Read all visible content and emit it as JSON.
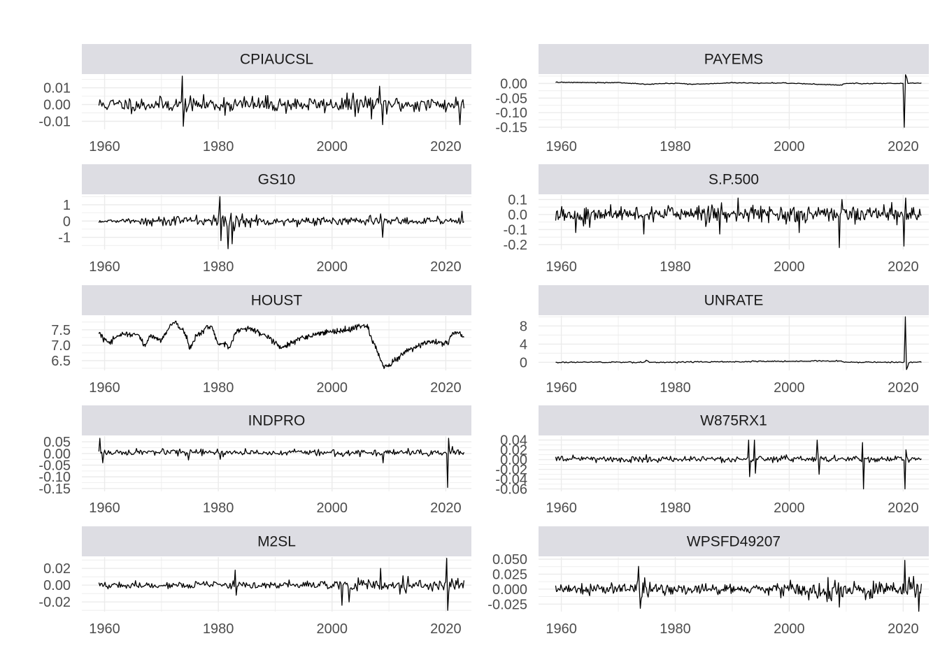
{
  "chart_data": {
    "type": "line",
    "layout": "facet-grid-5x2",
    "theme": {
      "strip_fill": "#dddde3",
      "grid_color": "#ebebeb",
      "line_color": "#000000",
      "background": "#ffffff"
    },
    "x_ticks": [
      1960,
      1980,
      2000,
      2020
    ],
    "xlim": [
      1956,
      2024.5
    ],
    "panels": [
      {
        "title": "CPIAUCSL",
        "ylim": [
          -0.0148,
          0.0182
        ],
        "y_ticks": [
          {
            "v": 0.01,
            "label": "0.01"
          },
          {
            "v": 0.0,
            "label": "0.00"
          },
          {
            "v": -0.01,
            "label": "-0.01"
          }
        ],
        "series": {
          "start": 1959,
          "end": 2023.2,
          "points": 360,
          "base": 0.0,
          "noise": 0.0022,
          "seed": 11,
          "volatility": [
            [
              1959,
              1.0
            ],
            [
              1978,
              1.0
            ],
            [
              1980,
              1.2
            ],
            [
              2000,
              1.0
            ],
            [
              2005,
              1.5
            ],
            [
              2012,
              1.1
            ],
            [
              2023.5,
              1.1
            ]
          ],
          "anchors": [
            [
              1960,
              0.0
            ],
            [
              2023.5,
              0.0
            ]
          ],
          "spikes": [
            [
              1973.6,
              0.017
            ],
            [
              1973.8,
              -0.013
            ],
            [
              2008.9,
              -0.012
            ],
            [
              2008.4,
              0.011
            ],
            [
              2022.5,
              -0.012
            ]
          ]
        }
      },
      {
        "title": "PAYEMS",
        "ylim": [
          -0.157,
          0.032
        ],
        "y_ticks": [
          {
            "v": 0.0,
            "label": "0.00"
          },
          {
            "v": -0.05,
            "label": "-0.05"
          },
          {
            "v": -0.1,
            "label": "-0.10"
          },
          {
            "v": -0.15,
            "label": "-0.15"
          }
        ],
        "series": {
          "start": 1959,
          "end": 2023.2,
          "points": 300,
          "base": 0.0,
          "noise": 0.0008,
          "seed": 12,
          "volatility": [
            [
              1959,
              1.0
            ],
            [
              2023.5,
              1.0
            ]
          ],
          "anchors": [
            [
              1959,
              0.004
            ],
            [
              1970,
              0.003
            ],
            [
              1975,
              -0.003
            ],
            [
              1980,
              0.001
            ],
            [
              1983,
              -0.003
            ],
            [
              1990,
              0.002
            ],
            [
              2000,
              0.001
            ],
            [
              2009,
              -0.006
            ],
            [
              2010,
              0.0
            ],
            [
              2020,
              0.0
            ],
            [
              2023.5,
              0.002
            ]
          ],
          "spikes": [
            [
              2020.3,
              -0.15
            ],
            [
              2020.5,
              0.03
            ],
            [
              2020.7,
              0.02
            ]
          ]
        }
      },
      {
        "title": "GS10",
        "ylim": [
          -1.75,
          1.6
        ],
        "y_ticks": [
          {
            "v": 1,
            "label": "1"
          },
          {
            "v": 0,
            "label": "0"
          },
          {
            "v": -1,
            "label": "-1"
          }
        ],
        "series": {
          "start": 1959,
          "end": 2023.2,
          "points": 360,
          "base": 0.0,
          "noise": 0.12,
          "seed": 13,
          "volatility": [
            [
              1959,
              0.5
            ],
            [
              1965,
              0.6
            ],
            [
              1970,
              1.4
            ],
            [
              1979,
              1.3
            ],
            [
              1980,
              3.2
            ],
            [
              1986,
              1.8
            ],
            [
              1990,
              1.2
            ],
            [
              2010,
              1.1
            ],
            [
              2020,
              0.9
            ],
            [
              2023.5,
              2.0
            ]
          ],
          "anchors": [
            [
              1960,
              0.0
            ],
            [
              2023.5,
              0.0
            ]
          ],
          "spikes": [
            [
              1980.2,
              1.5
            ],
            [
              1980.5,
              -1.2
            ],
            [
              1981.8,
              -1.7
            ],
            [
              1982.5,
              -1.4
            ],
            [
              2008.9,
              -1.0
            ],
            [
              2022.8,
              0.6
            ]
          ]
        }
      },
      {
        "title": "S.P.500",
        "ylim": [
          -0.233,
          0.13
        ],
        "y_ticks": [
          {
            "v": 0.1,
            "label": "0.1"
          },
          {
            "v": 0.0,
            "label": "0.0"
          },
          {
            "v": -0.1,
            "label": "-0.1"
          },
          {
            "v": -0.2,
            "label": "-0.2"
          }
        ],
        "series": {
          "start": 1959,
          "end": 2023.2,
          "points": 420,
          "base": 0.005,
          "noise": 0.028,
          "seed": 14,
          "volatility": [
            [
              1959,
              1.0
            ],
            [
              2023.5,
              1.0
            ]
          ],
          "anchors": [
            [
              1960,
              0.005
            ],
            [
              2023.5,
              0.005
            ]
          ],
          "spikes": [
            [
              1962.5,
              -0.12
            ],
            [
              1974.5,
              -0.13
            ],
            [
              1987.8,
              -0.13
            ],
            [
              1991.0,
              0.11
            ],
            [
              2001.7,
              -0.12
            ],
            [
              2008.8,
              -0.22
            ],
            [
              2009.3,
              0.1
            ],
            [
              2020.2,
              -0.21
            ],
            [
              2020.4,
              0.11
            ]
          ]
        }
      },
      {
        "title": "HOUST",
        "ylim": [
          6.18,
          7.95
        ],
        "y_ticks": [
          {
            "v": 7.5,
            "label": "7.5"
          },
          {
            "v": 7.0,
            "label": "7.0"
          },
          {
            "v": 6.5,
            "label": "6.5"
          }
        ],
        "series": {
          "start": 1959,
          "end": 2023.2,
          "points": 640,
          "base": 0.0,
          "noise": 0.045,
          "seed": 15,
          "volatility": [
            [
              1959,
              1.0
            ],
            [
              2023.5,
              1.0
            ]
          ],
          "anchors": [
            [
              1959,
              7.42
            ],
            [
              1960,
              7.2
            ],
            [
              1961,
              7.1
            ],
            [
              1963,
              7.38
            ],
            [
              1966,
              7.35
            ],
            [
              1967,
              6.95
            ],
            [
              1968,
              7.3
            ],
            [
              1970,
              7.15
            ],
            [
              1971.5,
              7.65
            ],
            [
              1972.5,
              7.75
            ],
            [
              1974,
              7.45
            ],
            [
              1975,
              6.95
            ],
            [
              1976,
              7.25
            ],
            [
              1978,
              7.6
            ],
            [
              1979,
              7.55
            ],
            [
              1980,
              7.05
            ],
            [
              1981.5,
              7.0
            ],
            [
              1982,
              6.95
            ],
            [
              1983,
              7.4
            ],
            [
              1984,
              7.55
            ],
            [
              1986,
              7.5
            ],
            [
              1988,
              7.35
            ],
            [
              1990,
              7.1
            ],
            [
              1991,
              6.9
            ],
            [
              1993,
              7.1
            ],
            [
              1996,
              7.3
            ],
            [
              1998,
              7.4
            ],
            [
              2003,
              7.5
            ],
            [
              2005,
              7.65
            ],
            [
              2006,
              7.62
            ],
            [
              2007,
              7.2
            ],
            [
              2008,
              6.8
            ],
            [
              2009,
              6.3
            ],
            [
              2010,
              6.35
            ],
            [
              2011,
              6.5
            ],
            [
              2013,
              6.8
            ],
            [
              2016,
              7.05
            ],
            [
              2019,
              7.1
            ],
            [
              2020.3,
              7.05
            ],
            [
              2021,
              7.35
            ],
            [
              2022,
              7.45
            ],
            [
              2023.2,
              7.22
            ]
          ],
          "spikes": []
        }
      },
      {
        "title": "UNRATE",
        "ylim": [
          -1.8,
          10.2
        ],
        "y_ticks": [
          {
            "v": 8,
            "label": "8"
          },
          {
            "v": 4,
            "label": "4"
          },
          {
            "v": 0,
            "label": "0"
          }
        ],
        "series": {
          "start": 1959,
          "end": 2023.2,
          "points": 320,
          "base": 0.0,
          "noise": 0.07,
          "seed": 16,
          "volatility": [
            [
              1959,
              1.0
            ],
            [
              2023.5,
              1.0
            ]
          ],
          "anchors": [
            [
              1960,
              0.0
            ],
            [
              1974.6,
              0.0
            ],
            [
              1975,
              0.5
            ],
            [
              1975.5,
              0.0
            ],
            [
              2009,
              0.3
            ],
            [
              2009.5,
              0.0
            ],
            [
              2023.5,
              0.0
            ]
          ],
          "spikes": [
            [
              2020.3,
              10.0
            ],
            [
              2020.6,
              -1.6
            ],
            [
              2020.8,
              -1.0
            ]
          ]
        }
      },
      {
        "title": "INDPRO",
        "ylim": [
          -0.162,
          0.074
        ],
        "y_ticks": [
          {
            "v": 0.05,
            "label": "0.05"
          },
          {
            "v": 0.0,
            "label": "0.00"
          },
          {
            "v": -0.05,
            "label": "-0.05"
          },
          {
            "v": -0.1,
            "label": "-0.10"
          },
          {
            "v": -0.15,
            "label": "-0.15"
          }
        ],
        "series": {
          "start": 1959,
          "end": 2023.2,
          "points": 380,
          "base": 0.004,
          "noise": 0.0065,
          "seed": 17,
          "volatility": [
            [
              1959,
              1.0
            ],
            [
              2023.5,
              1.0
            ]
          ],
          "anchors": [
            [
              1960,
              0.004
            ],
            [
              2023.5,
              0.003
            ]
          ],
          "spikes": [
            [
              1959.2,
              0.065
            ],
            [
              1959.6,
              -0.04
            ],
            [
              1974.8,
              -0.028
            ],
            [
              1980.3,
              -0.025
            ],
            [
              2008.9,
              -0.04
            ],
            [
              2020.3,
              -0.145
            ],
            [
              2020.5,
              0.065
            ],
            [
              2021.2,
              0.03
            ]
          ]
        }
      },
      {
        "title": "W875RX1",
        "ylim": [
          -0.065,
          0.048
        ],
        "y_ticks": [
          {
            "v": 0.04,
            "label": "0.04"
          },
          {
            "v": 0.02,
            "label": "0.02"
          },
          {
            "v": 0.0,
            "label": "0.00"
          },
          {
            "v": -0.02,
            "label": "-0.02"
          },
          {
            "v": -0.04,
            "label": "-0.04"
          },
          {
            "v": -0.06,
            "label": "-0.06"
          }
        ],
        "series": {
          "start": 1959,
          "end": 2023.2,
          "points": 380,
          "base": 0.001,
          "noise": 0.0032,
          "seed": 18,
          "volatility": [
            [
              1959,
              1.0
            ],
            [
              2023.5,
              1.0
            ]
          ],
          "anchors": [
            [
              1960,
              0.001
            ],
            [
              2023.5,
              0.001
            ]
          ],
          "spikes": [
            [
              1992.9,
              0.04
            ],
            [
              1993.1,
              -0.035
            ],
            [
              1993.9,
              0.04
            ],
            [
              1994.1,
              -0.028
            ],
            [
              2004.9,
              0.04
            ],
            [
              2005.2,
              -0.03
            ],
            [
              2012.9,
              0.035
            ],
            [
              2013.1,
              -0.06
            ],
            [
              2020.3,
              -0.06
            ],
            [
              2020.5,
              0.02
            ]
          ]
        }
      },
      {
        "title": "M2SL",
        "ylim": [
          -0.0315,
          0.0335
        ],
        "y_ticks": [
          {
            "v": 0.02,
            "label": "0.02"
          },
          {
            "v": 0.0,
            "label": "0.00"
          },
          {
            "v": -0.02,
            "label": "-0.02"
          }
        ],
        "series": {
          "start": 1959,
          "end": 2023.2,
          "points": 360,
          "base": 0.0,
          "noise": 0.0018,
          "seed": 19,
          "volatility": [
            [
              1959,
              1.0
            ],
            [
              1980,
              1.3
            ],
            [
              1999,
              1.3
            ],
            [
              2000,
              2.2
            ],
            [
              2012,
              2.4
            ],
            [
              2019,
              2.0
            ],
            [
              2023.5,
              2.2
            ]
          ],
          "anchors": [
            [
              1960,
              0.0
            ],
            [
              2023.5,
              0.0
            ]
          ],
          "spikes": [
            [
              1983.0,
              0.018
            ],
            [
              1983.2,
              -0.012
            ],
            [
              2001.8,
              -0.024
            ],
            [
              2003.0,
              -0.02
            ],
            [
              2008.5,
              0.02
            ],
            [
              2020.2,
              0.032
            ],
            [
              2020.4,
              -0.03
            ]
          ]
        }
      },
      {
        "title": "WPSFD49207",
        "ylim": [
          -0.0375,
          0.0535
        ],
        "y_ticks": [
          {
            "v": 0.05,
            "label": "0.050"
          },
          {
            "v": 0.025,
            "label": "0.025"
          },
          {
            "v": 0.0,
            "label": "0.000"
          },
          {
            "v": -0.025,
            "label": "-0.025"
          }
        ],
        "series": {
          "start": 1959,
          "end": 2023.2,
          "points": 420,
          "base": 0.0,
          "noise": 0.0042,
          "seed": 20,
          "volatility": [
            [
              1959,
              1.0
            ],
            [
              1972,
              1.2
            ],
            [
              1974,
              2.6
            ],
            [
              1976,
              1.3
            ],
            [
              1985,
              1.0
            ],
            [
              2000,
              1.7
            ],
            [
              2008,
              2.2
            ],
            [
              2014,
              1.8
            ],
            [
              2023.5,
              1.8
            ]
          ],
          "anchors": [
            [
              1960,
              0.0
            ],
            [
              2023.5,
              0.0
            ]
          ],
          "spikes": [
            [
              1973.5,
              0.038
            ],
            [
              1973.8,
              -0.032
            ],
            [
              2008.8,
              -0.03
            ],
            [
              2020.3,
              0.048
            ],
            [
              2022.8,
              -0.037
            ],
            [
              2021.0,
              0.02
            ]
          ]
        }
      }
    ]
  }
}
